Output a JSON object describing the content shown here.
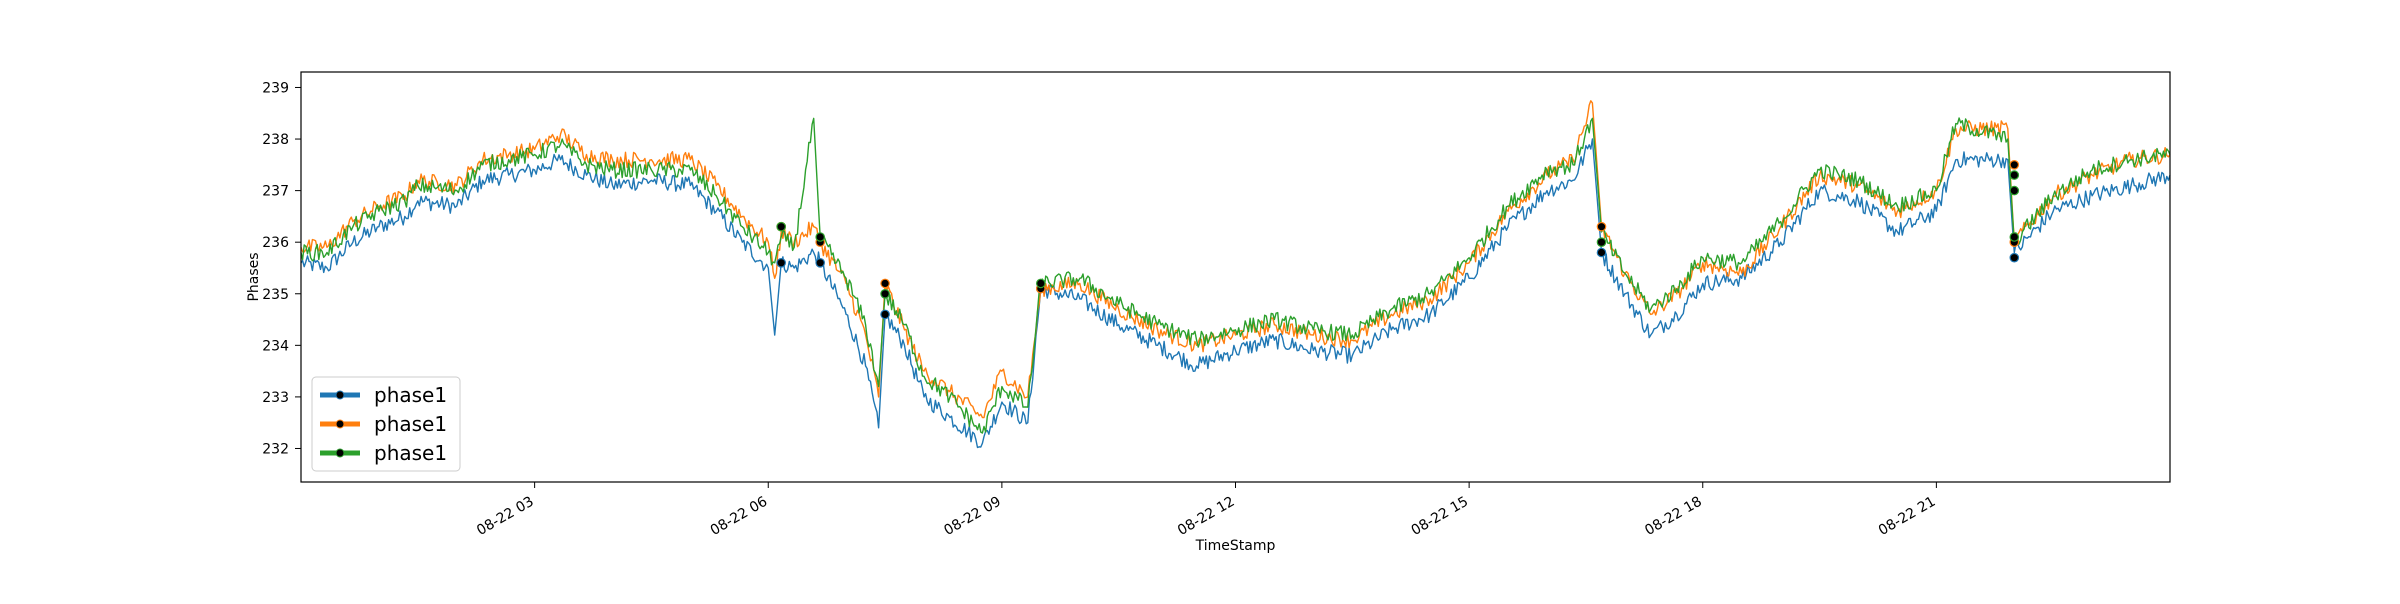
{
  "chart_data": {
    "type": "line",
    "title": "",
    "xlabel": "TimeStamp",
    "ylabel": "Phases",
    "xlim": [
      "2018-08-22 00:00",
      "2018-08-23 00:00"
    ],
    "ylim": [
      231.35,
      239.3
    ],
    "x_ticks": [
      {
        "value": "2018-08-22 03:00",
        "label": "08-22 03"
      },
      {
        "value": "2018-08-22 06:00",
        "label": "08-22 06"
      },
      {
        "value": "2018-08-22 09:00",
        "label": "08-22 09"
      },
      {
        "value": "2018-08-22 12:00",
        "label": "08-22 12"
      },
      {
        "value": "2018-08-22 15:00",
        "label": "08-22 15"
      },
      {
        "value": "2018-08-22 18:00",
        "label": "08-22 18"
      },
      {
        "value": "2018-08-22 21:00",
        "label": "08-22 21"
      }
    ],
    "y_ticks": [
      232,
      233,
      234,
      235,
      236,
      237,
      238,
      239
    ],
    "grid": false,
    "legend": {
      "location": "lower-left"
    },
    "series": [
      {
        "name": "phase1",
        "color": "#1f77b4",
        "points": [
          [
            "2018-08-22 00:00",
            235.6
          ],
          [
            "2018-08-22 00:20",
            235.5
          ],
          [
            "2018-08-22 00:40",
            236.0
          ],
          [
            "2018-08-22 01:00",
            236.3
          ],
          [
            "2018-08-22 01:20",
            236.5
          ],
          [
            "2018-08-22 01:30",
            236.8
          ],
          [
            "2018-08-22 02:00",
            236.7
          ],
          [
            "2018-08-22 02:20",
            237.2
          ],
          [
            "2018-08-22 02:40",
            237.3
          ],
          [
            "2018-08-22 03:00",
            237.4
          ],
          [
            "2018-08-22 03:20",
            237.6
          ],
          [
            "2018-08-22 03:40",
            237.3
          ],
          [
            "2018-08-22 04:00",
            237.1
          ],
          [
            "2018-08-22 04:30",
            237.2
          ],
          [
            "2018-08-22 05:00",
            237.1
          ],
          [
            "2018-08-22 05:20",
            236.6
          ],
          [
            "2018-08-22 05:40",
            236.0
          ],
          [
            "2018-08-22 06:00",
            235.5
          ],
          [
            "2018-08-22 06:05",
            234.2
          ],
          [
            "2018-08-22 06:10",
            235.6
          ],
          [
            "2018-08-22 06:20",
            235.5
          ],
          [
            "2018-08-22 06:35",
            235.8
          ],
          [
            "2018-08-22 06:40",
            235.6
          ],
          [
            "2018-08-22 07:00",
            234.6
          ],
          [
            "2018-08-22 07:15",
            233.6
          ],
          [
            "2018-08-22 07:25",
            232.4
          ],
          [
            "2018-08-22 07:30",
            234.6
          ],
          [
            "2018-08-22 07:45",
            234.0
          ],
          [
            "2018-08-22 08:00",
            233.0
          ],
          [
            "2018-08-22 08:20",
            232.6
          ],
          [
            "2018-08-22 08:45",
            232.1
          ],
          [
            "2018-08-22 09:00",
            232.9
          ],
          [
            "2018-08-22 09:20",
            232.5
          ],
          [
            "2018-08-22 09:30",
            235.1
          ],
          [
            "2018-08-22 10:00",
            234.9
          ],
          [
            "2018-08-22 10:30",
            234.4
          ],
          [
            "2018-08-22 11:00",
            234.0
          ],
          [
            "2018-08-22 11:30",
            233.6
          ],
          [
            "2018-08-22 12:00",
            233.9
          ],
          [
            "2018-08-22 12:30",
            234.1
          ],
          [
            "2018-08-22 13:00",
            233.9
          ],
          [
            "2018-08-22 13:30",
            233.8
          ],
          [
            "2018-08-22 14:00",
            234.3
          ],
          [
            "2018-08-22 14:30",
            234.6
          ],
          [
            "2018-08-22 15:00",
            235.3
          ],
          [
            "2018-08-22 15:30",
            236.3
          ],
          [
            "2018-08-22 16:00",
            237.0
          ],
          [
            "2018-08-22 16:20",
            237.2
          ],
          [
            "2018-08-22 16:35",
            238.0
          ],
          [
            "2018-08-22 16:42",
            235.8
          ],
          [
            "2018-08-22 17:00",
            235.0
          ],
          [
            "2018-08-22 17:20",
            234.2
          ],
          [
            "2018-08-22 17:40",
            234.6
          ],
          [
            "2018-08-22 18:00",
            235.2
          ],
          [
            "2018-08-22 18:30",
            235.3
          ],
          [
            "2018-08-22 19:00",
            236.0
          ],
          [
            "2018-08-22 19:30",
            237.0
          ],
          [
            "2018-08-22 20:00",
            236.8
          ],
          [
            "2018-08-22 20:30",
            236.2
          ],
          [
            "2018-08-22 21:00",
            236.6
          ],
          [
            "2018-08-22 21:15",
            237.6
          ],
          [
            "2018-08-22 21:55",
            237.6
          ],
          [
            "2018-08-22 22:00",
            235.8
          ],
          [
            "2018-08-22 22:30",
            236.6
          ],
          [
            "2018-08-22 23:00",
            236.9
          ],
          [
            "2018-08-22 23:30",
            237.1
          ],
          [
            "2018-08-23 00:00",
            237.3
          ]
        ]
      },
      {
        "name": "phase1",
        "color": "#ff7f0e",
        "points": [
          [
            "2018-08-22 00:00",
            235.9
          ],
          [
            "2018-08-22 00:20",
            235.9
          ],
          [
            "2018-08-22 00:40",
            236.4
          ],
          [
            "2018-08-22 01:00",
            236.7
          ],
          [
            "2018-08-22 01:20",
            236.9
          ],
          [
            "2018-08-22 01:30",
            237.2
          ],
          [
            "2018-08-22 02:00",
            237.1
          ],
          [
            "2018-08-22 02:20",
            237.6
          ],
          [
            "2018-08-22 02:40",
            237.7
          ],
          [
            "2018-08-22 03:00",
            237.8
          ],
          [
            "2018-08-22 03:20",
            238.1
          ],
          [
            "2018-08-22 03:40",
            237.7
          ],
          [
            "2018-08-22 04:00",
            237.6
          ],
          [
            "2018-08-22 04:30",
            237.6
          ],
          [
            "2018-08-22 05:00",
            237.6
          ],
          [
            "2018-08-22 05:20",
            237.1
          ],
          [
            "2018-08-22 05:40",
            236.5
          ],
          [
            "2018-08-22 06:00",
            236.0
          ],
          [
            "2018-08-22 06:05",
            235.3
          ],
          [
            "2018-08-22 06:10",
            236.2
          ],
          [
            "2018-08-22 06:20",
            236.0
          ],
          [
            "2018-08-22 06:35",
            236.3
          ],
          [
            "2018-08-22 06:40",
            236.0
          ],
          [
            "2018-08-22 07:00",
            235.2
          ],
          [
            "2018-08-22 07:15",
            234.2
          ],
          [
            "2018-08-22 07:25",
            233.0
          ],
          [
            "2018-08-22 07:30",
            235.2
          ],
          [
            "2018-08-22 07:45",
            234.3
          ],
          [
            "2018-08-22 08:00",
            233.5
          ],
          [
            "2018-08-22 08:20",
            233.1
          ],
          [
            "2018-08-22 08:45",
            232.6
          ],
          [
            "2018-08-22 09:00",
            233.5
          ],
          [
            "2018-08-22 09:20",
            233.0
          ],
          [
            "2018-08-22 09:30",
            235.1
          ],
          [
            "2018-08-22 10:00",
            235.2
          ],
          [
            "2018-08-22 10:30",
            234.7
          ],
          [
            "2018-08-22 11:00",
            234.3
          ],
          [
            "2018-08-22 11:30",
            234.0
          ],
          [
            "2018-08-22 12:00",
            234.2
          ],
          [
            "2018-08-22 12:30",
            234.4
          ],
          [
            "2018-08-22 13:00",
            234.2
          ],
          [
            "2018-08-22 13:30",
            234.1
          ],
          [
            "2018-08-22 14:00",
            234.6
          ],
          [
            "2018-08-22 14:30",
            234.9
          ],
          [
            "2018-08-22 15:00",
            235.6
          ],
          [
            "2018-08-22 15:30",
            236.6
          ],
          [
            "2018-08-22 16:00",
            237.3
          ],
          [
            "2018-08-22 16:20",
            237.6
          ],
          [
            "2018-08-22 16:35",
            238.7
          ],
          [
            "2018-08-22 16:42",
            236.3
          ],
          [
            "2018-08-22 17:00",
            235.4
          ],
          [
            "2018-08-22 17:20",
            234.6
          ],
          [
            "2018-08-22 17:40",
            235.0
          ],
          [
            "2018-08-22 18:00",
            235.6
          ],
          [
            "2018-08-22 18:30",
            235.4
          ],
          [
            "2018-08-22 19:00",
            236.3
          ],
          [
            "2018-08-22 19:30",
            237.3
          ],
          [
            "2018-08-22 20:00",
            237.1
          ],
          [
            "2018-08-22 20:30",
            236.6
          ],
          [
            "2018-08-22 21:00",
            237.0
          ],
          [
            "2018-08-22 21:15",
            238.2
          ],
          [
            "2018-08-22 21:55",
            238.2
          ],
          [
            "2018-08-22 22:00",
            236.0
          ],
          [
            "2018-08-22 22:30",
            236.9
          ],
          [
            "2018-08-22 23:00",
            237.3
          ],
          [
            "2018-08-22 23:30",
            237.6
          ],
          [
            "2018-08-23 00:00",
            237.7
          ]
        ]
      },
      {
        "name": "phase1",
        "color": "#2ca02c",
        "points": [
          [
            "2018-08-22 00:00",
            235.8
          ],
          [
            "2018-08-22 00:20",
            235.8
          ],
          [
            "2018-08-22 00:40",
            236.3
          ],
          [
            "2018-08-22 01:00",
            236.6
          ],
          [
            "2018-08-22 01:20",
            236.8
          ],
          [
            "2018-08-22 01:30",
            237.1
          ],
          [
            "2018-08-22 02:00",
            237.0
          ],
          [
            "2018-08-22 02:20",
            237.5
          ],
          [
            "2018-08-22 02:40",
            237.6
          ],
          [
            "2018-08-22 03:00",
            237.7
          ],
          [
            "2018-08-22 03:20",
            237.9
          ],
          [
            "2018-08-22 03:40",
            237.5
          ],
          [
            "2018-08-22 04:00",
            237.4
          ],
          [
            "2018-08-22 04:30",
            237.4
          ],
          [
            "2018-08-22 05:00",
            237.4
          ],
          [
            "2018-08-22 05:20",
            236.9
          ],
          [
            "2018-08-22 05:40",
            236.3
          ],
          [
            "2018-08-22 06:00",
            235.8
          ],
          [
            "2018-08-22 06:05",
            235.6
          ],
          [
            "2018-08-22 06:10",
            236.1
          ],
          [
            "2018-08-22 06:20",
            235.9
          ],
          [
            "2018-08-22 06:35",
            238.4
          ],
          [
            "2018-08-22 06:40",
            236.1
          ],
          [
            "2018-08-22 07:00",
            235.3
          ],
          [
            "2018-08-22 07:15",
            234.4
          ],
          [
            "2018-08-22 07:25",
            233.2
          ],
          [
            "2018-08-22 07:30",
            235.0
          ],
          [
            "2018-08-22 07:45",
            234.4
          ],
          [
            "2018-08-22 08:00",
            233.4
          ],
          [
            "2018-08-22 08:20",
            233.0
          ],
          [
            "2018-08-22 08:45",
            232.3
          ],
          [
            "2018-08-22 09:00",
            233.2
          ],
          [
            "2018-08-22 09:20",
            232.8
          ],
          [
            "2018-08-22 09:30",
            235.2
          ],
          [
            "2018-08-22 10:00",
            235.3
          ],
          [
            "2018-08-22 10:30",
            234.8
          ],
          [
            "2018-08-22 11:00",
            234.4
          ],
          [
            "2018-08-22 11:30",
            234.1
          ],
          [
            "2018-08-22 12:00",
            234.3
          ],
          [
            "2018-08-22 12:30",
            234.5
          ],
          [
            "2018-08-22 13:00",
            234.3
          ],
          [
            "2018-08-22 13:30",
            234.2
          ],
          [
            "2018-08-22 14:00",
            234.7
          ],
          [
            "2018-08-22 14:30",
            235.0
          ],
          [
            "2018-08-22 15:00",
            235.7
          ],
          [
            "2018-08-22 15:30",
            236.7
          ],
          [
            "2018-08-22 16:00",
            237.4
          ],
          [
            "2018-08-22 16:20",
            237.5
          ],
          [
            "2018-08-22 16:35",
            238.4
          ],
          [
            "2018-08-22 16:42",
            236.2
          ],
          [
            "2018-08-22 17:00",
            235.4
          ],
          [
            "2018-08-22 17:20",
            234.7
          ],
          [
            "2018-08-22 17:40",
            235.1
          ],
          [
            "2018-08-22 18:00",
            235.7
          ],
          [
            "2018-08-22 18:30",
            235.6
          ],
          [
            "2018-08-22 19:00",
            236.4
          ],
          [
            "2018-08-22 19:30",
            237.4
          ],
          [
            "2018-08-22 20:00",
            237.2
          ],
          [
            "2018-08-22 20:30",
            236.7
          ],
          [
            "2018-08-22 21:00",
            237.0
          ],
          [
            "2018-08-22 21:15",
            238.3
          ],
          [
            "2018-08-22 21:55",
            238.0
          ],
          [
            "2018-08-22 22:00",
            236.0
          ],
          [
            "2018-08-22 22:30",
            236.9
          ],
          [
            "2018-08-22 23:00",
            237.4
          ],
          [
            "2018-08-22 23:30",
            237.6
          ],
          [
            "2018-08-23 00:00",
            237.7
          ]
        ]
      }
    ],
    "markers": [
      {
        "series": 0,
        "points": [
          [
            "2018-08-22 06:10",
            235.6
          ],
          [
            "2018-08-22 06:40",
            235.6
          ],
          [
            "2018-08-22 07:30",
            234.6
          ],
          [
            "2018-08-22 09:30",
            235.1
          ],
          [
            "2018-08-22 16:42",
            235.8
          ],
          [
            "2018-08-22 22:00",
            235.7
          ]
        ]
      },
      {
        "series": 1,
        "points": [
          [
            "2018-08-22 06:10",
            236.3
          ],
          [
            "2018-08-22 06:40",
            236.0
          ],
          [
            "2018-08-22 07:30",
            235.2
          ],
          [
            "2018-08-22 09:30",
            235.1
          ],
          [
            "2018-08-22 16:42",
            236.3
          ],
          [
            "2018-08-22 22:00",
            236.0
          ],
          [
            "2018-08-22 22:00",
            237.5
          ]
        ]
      },
      {
        "series": 2,
        "points": [
          [
            "2018-08-22 06:10",
            236.3
          ],
          [
            "2018-08-22 06:40",
            236.1
          ],
          [
            "2018-08-22 07:30",
            235.0
          ],
          [
            "2018-08-22 09:30",
            235.2
          ],
          [
            "2018-08-22 16:42",
            236.0
          ],
          [
            "2018-08-22 22:00",
            236.1
          ],
          [
            "2018-08-22 22:00",
            237.3
          ],
          [
            "2018-08-22 22:00",
            237.0
          ]
        ]
      }
    ]
  }
}
